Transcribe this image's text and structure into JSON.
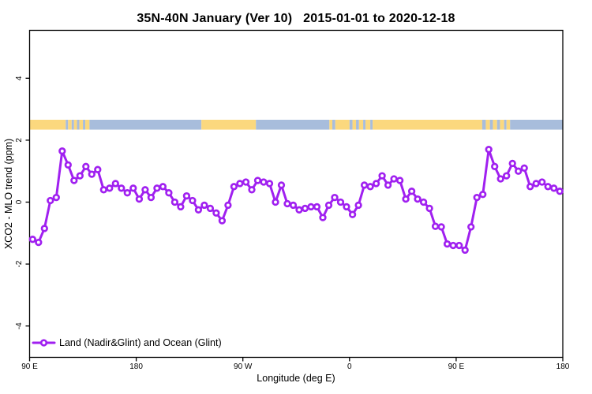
{
  "title": "35N-40N January (Ver 10)   2015-01-01 to 2020-12-18",
  "axes": {
    "x_label": "Longitude (deg E)",
    "y_label": "XCO2 - MLO trend (ppm)",
    "x_ticks": [
      {
        "lon": 90,
        "label": "90 E"
      },
      {
        "lon": 180,
        "label": "180"
      },
      {
        "lon": 270,
        "label": "90 W"
      },
      {
        "lon": 360,
        "label": "0"
      },
      {
        "lon": 450,
        "label": "90 E"
      },
      {
        "lon": 540,
        "label": "180"
      }
    ],
    "y_ticks": [
      {
        "value": -4,
        "label": "-4"
      },
      {
        "value": -2,
        "label": "-2"
      },
      {
        "value": 0,
        "label": "0"
      },
      {
        "value": 2,
        "label": "2"
      },
      {
        "value": 4,
        "label": "4"
      }
    ]
  },
  "legend": {
    "label": "Land (Nadir&Glint) and Ocean (Glint)",
    "position": "bottom-left"
  },
  "colors": {
    "series": "#A020F0",
    "marker_fill": "#ffffff",
    "land": "#FBD87E",
    "ocean": "#A8BDDC",
    "axis": "#000000"
  },
  "surface_band": {
    "value_range": [
      2.34,
      2.66
    ],
    "segments": [
      {
        "from": 90,
        "to": 120.5,
        "type": "land"
      },
      {
        "from": 120.5,
        "to": 122.5,
        "type": "ocean"
      },
      {
        "from": 122.5,
        "to": 125.5,
        "type": "land"
      },
      {
        "from": 125.5,
        "to": 127.5,
        "type": "ocean"
      },
      {
        "from": 127.5,
        "to": 130,
        "type": "land"
      },
      {
        "from": 130,
        "to": 132,
        "type": "ocean"
      },
      {
        "from": 132,
        "to": 135,
        "type": "land"
      },
      {
        "from": 135,
        "to": 137,
        "type": "ocean"
      },
      {
        "from": 137,
        "to": 140.5,
        "type": "land"
      },
      {
        "from": 140.5,
        "to": 235,
        "type": "ocean"
      },
      {
        "from": 235,
        "to": 281,
        "type": "land"
      },
      {
        "from": 281,
        "to": 343,
        "type": "ocean"
      },
      {
        "from": 343,
        "to": 345.5,
        "type": "land"
      },
      {
        "from": 345.5,
        "to": 348,
        "type": "ocean"
      },
      {
        "from": 348,
        "to": 360,
        "type": "land"
      },
      {
        "from": 360,
        "to": 362.5,
        "type": "ocean"
      },
      {
        "from": 362.5,
        "to": 365.5,
        "type": "land"
      },
      {
        "from": 365.5,
        "to": 368,
        "type": "ocean"
      },
      {
        "from": 368,
        "to": 371.5,
        "type": "land"
      },
      {
        "from": 371.5,
        "to": 373.5,
        "type": "ocean"
      },
      {
        "from": 373.5,
        "to": 377.5,
        "type": "land"
      },
      {
        "from": 377.5,
        "to": 379.5,
        "type": "ocean"
      },
      {
        "from": 379.5,
        "to": 472,
        "type": "land"
      },
      {
        "from": 472,
        "to": 475,
        "type": "ocean"
      },
      {
        "from": 475,
        "to": 478.5,
        "type": "land"
      },
      {
        "from": 478.5,
        "to": 481,
        "type": "ocean"
      },
      {
        "from": 481,
        "to": 484.5,
        "type": "land"
      },
      {
        "from": 484.5,
        "to": 487,
        "type": "ocean"
      },
      {
        "from": 487,
        "to": 490.5,
        "type": "land"
      },
      {
        "from": 490.5,
        "to": 492.5,
        "type": "ocean"
      },
      {
        "from": 492.5,
        "to": 495.5,
        "type": "land"
      },
      {
        "from": 495.5,
        "to": 540,
        "type": "ocean"
      }
    ]
  },
  "chart_data": {
    "type": "line",
    "title": "35N-40N January (Ver 10)   2015-01-01 to 2020-12-18",
    "xlabel": "Longitude (deg E)",
    "ylabel": "XCO2 - MLO trend (ppm)",
    "xlim": [
      90,
      540
    ],
    "ylim": [
      -5,
      5.55
    ],
    "grid": false,
    "legend_position": "bottom-left",
    "marker": "open-circle",
    "series_name": "Land (Nadir&Glint) and Ocean (Glint)",
    "x": [
      92.5,
      97.5,
      102.5,
      107.5,
      112.5,
      117.5,
      122.5,
      127.5,
      132.5,
      137.5,
      142.5,
      147.5,
      152.5,
      157.5,
      162.5,
      167.5,
      172.5,
      177.5,
      182.5,
      187.5,
      192.5,
      197.5,
      202.5,
      207.5,
      212.5,
      217.5,
      222.5,
      227.5,
      232.5,
      237.5,
      242.5,
      247.5,
      252.5,
      257.5,
      262.5,
      267.5,
      272.5,
      277.5,
      282.5,
      287.5,
      292.5,
      297.5,
      302.5,
      307.5,
      312.5,
      317.5,
      322.5,
      327.5,
      332.5,
      337.5,
      342.5,
      347.5,
      352.5,
      357.5,
      362.5,
      367.5,
      372.5,
      377.5,
      382.5,
      387.5,
      392.5,
      397.5,
      402.5,
      407.5,
      412.5,
      417.5,
      422.5,
      427.5,
      432.5,
      437.5,
      442.5,
      447.5,
      452.5,
      457.5,
      462.5,
      467.5,
      472.5,
      477.5,
      482.5,
      487.5,
      492.5,
      497.5,
      502.5,
      507.5,
      512.5,
      517.5,
      522.5,
      527.5,
      532.5,
      537.5
    ],
    "values": [
      -1.2,
      -1.3,
      -0.85,
      0.05,
      0.15,
      1.65,
      1.2,
      0.7,
      0.85,
      1.15,
      0.9,
      1.05,
      0.4,
      0.45,
      0.6,
      0.45,
      0.3,
      0.45,
      0.1,
      0.4,
      0.15,
      0.45,
      0.5,
      0.3,
      0,
      -0.15,
      0.2,
      0.05,
      -0.25,
      -0.1,
      -0.2,
      -0.35,
      -0.6,
      -0.1,
      0.5,
      0.6,
      0.65,
      0.4,
      0.7,
      0.65,
      0.6,
      0,
      0.55,
      -0.05,
      -0.1,
      -0.25,
      -0.2,
      -0.15,
      -0.15,
      -0.5,
      -0.1,
      0.15,
      0,
      -0.15,
      -0.4,
      -0.1,
      0.55,
      0.5,
      0.6,
      0.85,
      0.55,
      0.75,
      0.7,
      0.1,
      0.35,
      0.1,
      0,
      -0.2,
      -0.78,
      -0.8,
      -1.35,
      -1.4,
      -1.4,
      -1.55,
      -0.8,
      0.15,
      0.25,
      1.7,
      1.15,
      0.75,
      0.85,
      1.25,
      1.0,
      1.1,
      0.5,
      0.6,
      0.65,
      0.5,
      0.45,
      0.35
    ]
  }
}
